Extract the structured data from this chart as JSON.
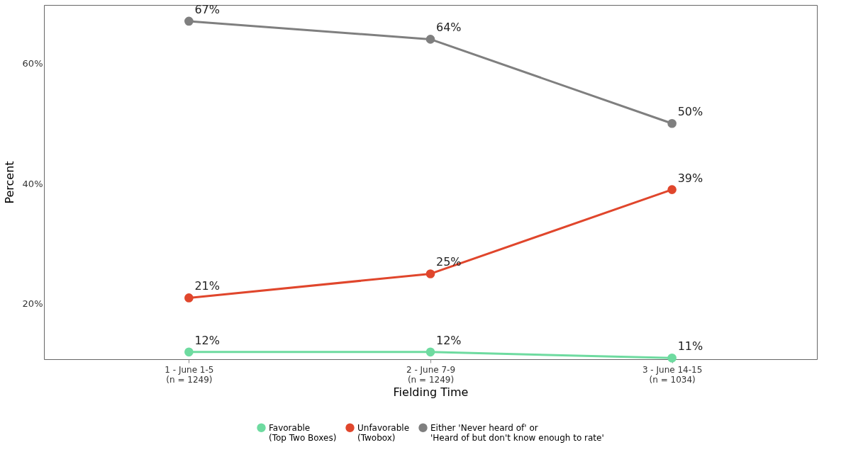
{
  "chart_data": {
    "type": "line",
    "xlabel": "Fielding Time",
    "ylabel": "Percent",
    "categories": [
      "1 - June 1-5\n(n = 1249)",
      "2 - June 7-9\n(n = 1249)",
      "3 - June 14-15\n(n = 1034)"
    ],
    "series": [
      {
        "name": "Favorable\n(Top Two Boxes)",
        "color": "#6edba0",
        "values": [
          12,
          12,
          11
        ],
        "value_labels": [
          "12%",
          "12%",
          "11%"
        ]
      },
      {
        "name": "Unfavorable\n(Twobox)",
        "color": "#e0462c",
        "values": [
          21,
          25,
          39
        ],
        "value_labels": [
          "21%",
          "25%",
          "39%"
        ]
      },
      {
        "name": "Either 'Never heard of' or\n'Heard of but don't know enough to rate'",
        "color": "#7f7f7f",
        "values": [
          67,
          64,
          50
        ],
        "value_labels": [
          "67%",
          "64%",
          "50%"
        ]
      }
    ],
    "ylim": [
      10.8,
      69.7
    ],
    "yticks": [
      {
        "value": 20,
        "label": "20%"
      },
      {
        "value": 40,
        "label": "40%"
      },
      {
        "value": 60,
        "label": "60%"
      }
    ],
    "grid": false,
    "legend": "bottom",
    "marker": "circle",
    "line_style": "solid"
  }
}
